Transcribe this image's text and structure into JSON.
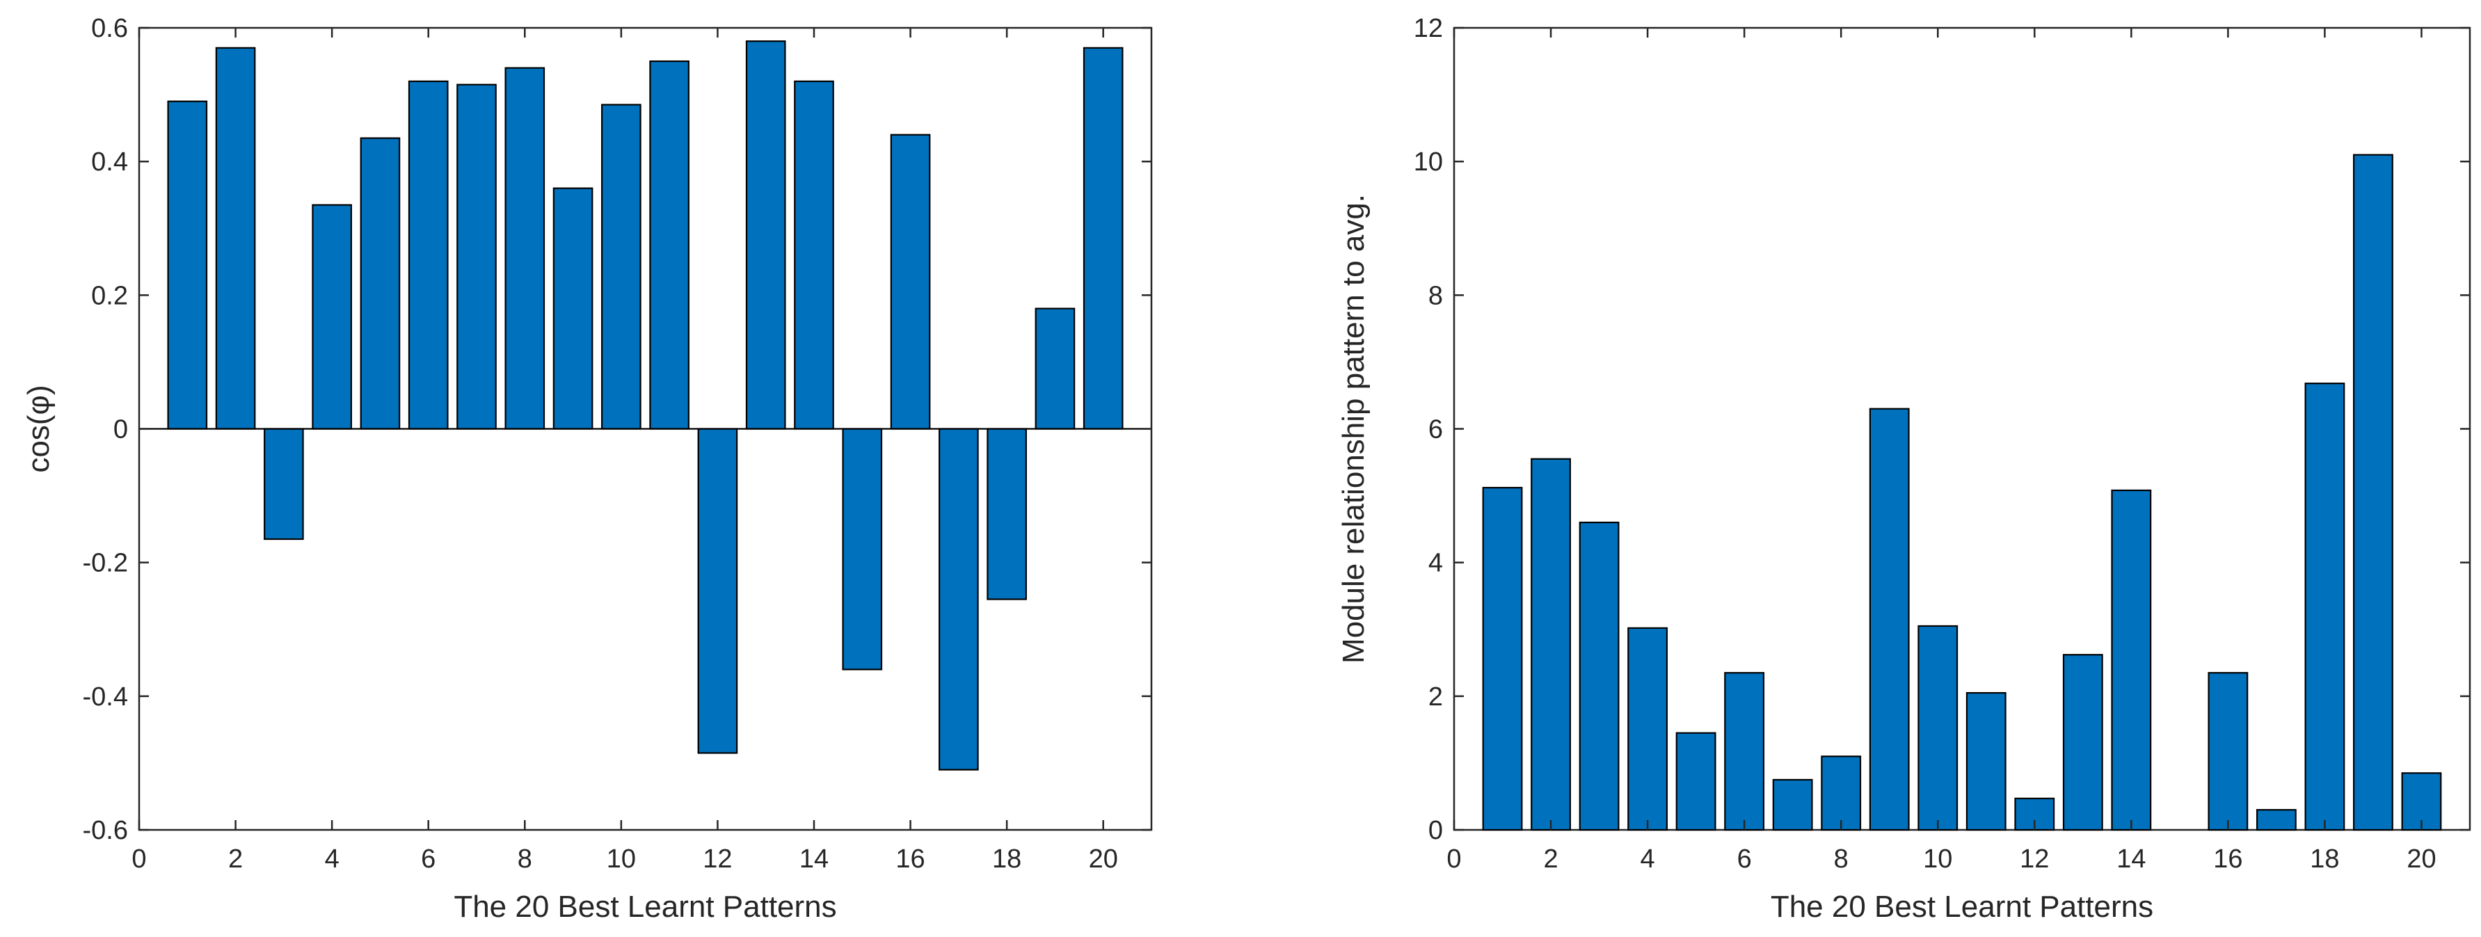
{
  "chart_data": [
    {
      "type": "bar",
      "id": "left",
      "xlabel": "The 20 Best Learnt Patterns",
      "ylabel": "cos(φ)",
      "ylim": [
        -0.6,
        0.6
      ],
      "xlim": [
        0,
        21
      ],
      "yticks": [
        -0.6,
        -0.4,
        -0.2,
        0,
        0.2,
        0.4,
        0.6
      ],
      "ytick_labels": [
        "-0.6",
        "-0.4",
        "-0.2",
        "0",
        "0.2",
        "0.4",
        "0.6"
      ],
      "xticks": [
        0,
        2,
        4,
        6,
        8,
        10,
        12,
        14,
        16,
        18,
        20
      ],
      "xtick_labels": [
        "0",
        "2",
        "4",
        "6",
        "8",
        "10",
        "12",
        "14",
        "16",
        "18",
        "20"
      ],
      "baseline": 0,
      "x": [
        1,
        2,
        3,
        4,
        5,
        6,
        7,
        8,
        9,
        10,
        11,
        12,
        13,
        14,
        15,
        16,
        17,
        18,
        19,
        20
      ],
      "values": [
        0.49,
        0.57,
        -0.165,
        0.335,
        0.435,
        0.52,
        0.515,
        0.54,
        0.36,
        0.485,
        0.55,
        -0.485,
        0.58,
        0.52,
        -0.36,
        0.44,
        -0.51,
        -0.255,
        0.18,
        0.57
      ],
      "bar_color": "#0072BD",
      "grid": false
    },
    {
      "type": "bar",
      "id": "right",
      "xlabel": "The 20 Best Learnt Patterns",
      "ylabel": "Module relationship pattern to avg.",
      "ylim": [
        0,
        12
      ],
      "xlim": [
        0,
        21
      ],
      "yticks": [
        0,
        2,
        4,
        6,
        8,
        10,
        12
      ],
      "ytick_labels": [
        "0",
        "2",
        "4",
        "6",
        "8",
        "10",
        "12"
      ],
      "xticks": [
        0,
        2,
        4,
        6,
        8,
        10,
        12,
        14,
        16,
        18,
        20
      ],
      "xtick_labels": [
        "0",
        "2",
        "4",
        "6",
        "8",
        "10",
        "12",
        "14",
        "16",
        "18",
        "20"
      ],
      "baseline": 0,
      "x": [
        1,
        2,
        3,
        4,
        5,
        6,
        7,
        8,
        9,
        10,
        11,
        12,
        13,
        14,
        15,
        16,
        17,
        18,
        19,
        20
      ],
      "values": [
        5.12,
        5.55,
        4.6,
        3.02,
        1.45,
        2.35,
        0.75,
        1.1,
        6.3,
        3.05,
        2.05,
        0.47,
        2.62,
        5.08,
        0,
        2.35,
        0.3,
        6.68,
        10.1,
        0.85
      ],
      "bar_color": "#0072BD",
      "grid": false
    }
  ]
}
